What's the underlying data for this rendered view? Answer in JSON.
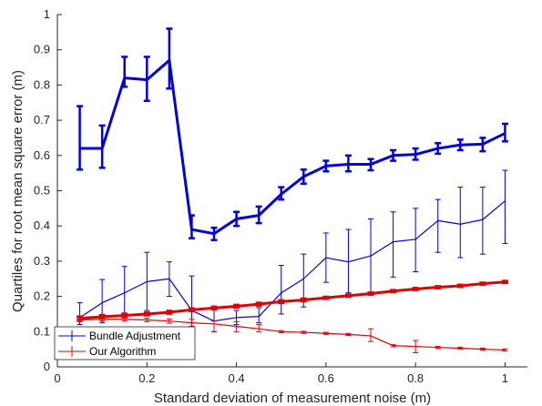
{
  "chart_data": {
    "type": "line",
    "title": "",
    "xlabel": "Standard deviation of measurement noise (m)",
    "ylabel": "Quartiles for root mean square error (m)",
    "xlim": [
      0,
      1.05
    ],
    "ylim": [
      0,
      1
    ],
    "xticks": [
      0,
      0.2,
      0.4,
      0.6,
      0.8,
      1
    ],
    "xtick_labels": [
      "0",
      "0.2",
      "0.4",
      "0.6",
      "0.8",
      "1"
    ],
    "yticks": [
      0,
      0.1,
      0.2,
      0.3,
      0.4,
      0.5,
      0.6,
      0.7,
      0.8,
      0.9,
      1
    ],
    "ytick_labels": [
      "0",
      "0.1",
      "0.2",
      "0.3",
      "0.4",
      "0.5",
      "0.6",
      "0.7",
      "0.8",
      "0.9",
      "1"
    ],
    "grid": false,
    "legend_position": "bottom-left",
    "x": [
      0.05,
      0.1,
      0.15,
      0.2,
      0.25,
      0.3,
      0.35,
      0.4,
      0.45,
      0.5,
      0.55,
      0.6,
      0.65,
      0.7,
      0.75,
      0.8,
      0.85,
      0.9,
      0.95,
      1.0
    ],
    "series": [
      {
        "name": "Bundle Adjustment",
        "color": "#0000e0",
        "style": "errorbar",
        "lines": [
          {
            "role": "median",
            "weight": "thick",
            "y": [
              0.62,
              0.62,
              0.82,
              0.815,
              0.87,
              0.39,
              0.378,
              0.42,
              0.43,
              0.49,
              0.54,
              0.57,
              0.575,
              0.575,
              0.6,
              0.603,
              0.62,
              0.63,
              0.632,
              0.663
            ],
            "err_low": [
              0.56,
              0.565,
              0.795,
              0.755,
              0.79,
              0.365,
              0.36,
              0.4,
              0.408,
              0.475,
              0.52,
              0.555,
              0.555,
              0.558,
              0.585,
              0.588,
              0.605,
              0.615,
              0.612,
              0.64
            ],
            "err_high": [
              0.74,
              0.685,
              0.88,
              0.88,
              0.96,
              0.43,
              0.395,
              0.44,
              0.455,
              0.51,
              0.56,
              0.585,
              0.6,
              0.59,
              0.615,
              0.62,
              0.635,
              0.645,
              0.65,
              0.69
            ]
          },
          {
            "role": "upper-quartile",
            "weight": "thin",
            "y": [
              0.14,
              0.182,
              0.21,
              0.242,
              0.25,
              0.16,
              0.13,
              0.14,
              0.143,
              0.21,
              0.25,
              0.31,
              0.298,
              0.315,
              0.355,
              0.362,
              0.415,
              0.405,
              0.418,
              0.471
            ],
            "err_low": [
              0.12,
              0.125,
              0.14,
              0.16,
              0.2,
              0.1,
              0.1,
              0.12,
              0.125,
              0.15,
              0.17,
              0.24,
              0.21,
              0.21,
              0.255,
              0.27,
              0.325,
              0.31,
              0.32,
              0.35
            ],
            "err_high": [
              0.182,
              0.248,
              0.285,
              0.325,
              0.298,
              0.258,
              0.163,
              0.16,
              0.168,
              0.288,
              0.32,
              0.38,
              0.39,
              0.42,
              0.44,
              0.45,
              0.475,
              0.51,
              0.51,
              0.558
            ]
          }
        ]
      },
      {
        "name": "Our Algorithm",
        "color": "#e00000",
        "style": "errorbar",
        "lines": [
          {
            "role": "upper-quartile",
            "weight": "thick",
            "y": [
              0.138,
              0.142,
              0.146,
              0.15,
              0.155,
              0.162,
              0.167,
              0.172,
              0.178,
              0.185,
              0.19,
              0.196,
              0.202,
              0.208,
              0.215,
              0.221,
              0.226,
              0.23,
              0.236,
              0.241
            ],
            "err_low": [
              0.133,
              0.137,
              0.141,
              0.146,
              0.151,
              0.158,
              0.163,
              0.168,
              0.174,
              0.181,
              0.186,
              0.193,
              0.199,
              0.205,
              0.212,
              0.218,
              0.223,
              0.227,
              0.233,
              0.238
            ],
            "err_high": [
              0.143,
              0.147,
              0.151,
              0.154,
              0.159,
              0.166,
              0.171,
              0.176,
              0.182,
              0.189,
              0.194,
              0.199,
              0.205,
              0.211,
              0.218,
              0.224,
              0.229,
              0.233,
              0.239,
              0.244
            ]
          },
          {
            "role": "median",
            "weight": "thin",
            "y": [
              0.133,
              0.135,
              0.135,
              0.133,
              0.13,
              0.125,
              0.122,
              0.115,
              0.108,
              0.1,
              0.098,
              0.095,
              0.092,
              0.088,
              0.06,
              0.058,
              0.055,
              0.053,
              0.05,
              0.048
            ],
            "err_low": [
              0.128,
              0.13,
              0.13,
              0.128,
              0.124,
              0.115,
              0.1,
              0.1,
              0.1,
              0.097,
              0.095,
              0.092,
              0.089,
              0.072,
              0.057,
              0.04,
              0.052,
              0.05,
              0.047,
              0.045
            ],
            "err_high": [
              0.138,
              0.14,
              0.14,
              0.138,
              0.136,
              0.135,
              0.13,
              0.128,
              0.12,
              0.103,
              0.101,
              0.098,
              0.095,
              0.108,
              0.063,
              0.075,
              0.058,
              0.056,
              0.053,
              0.051
            ]
          }
        ]
      }
    ]
  }
}
